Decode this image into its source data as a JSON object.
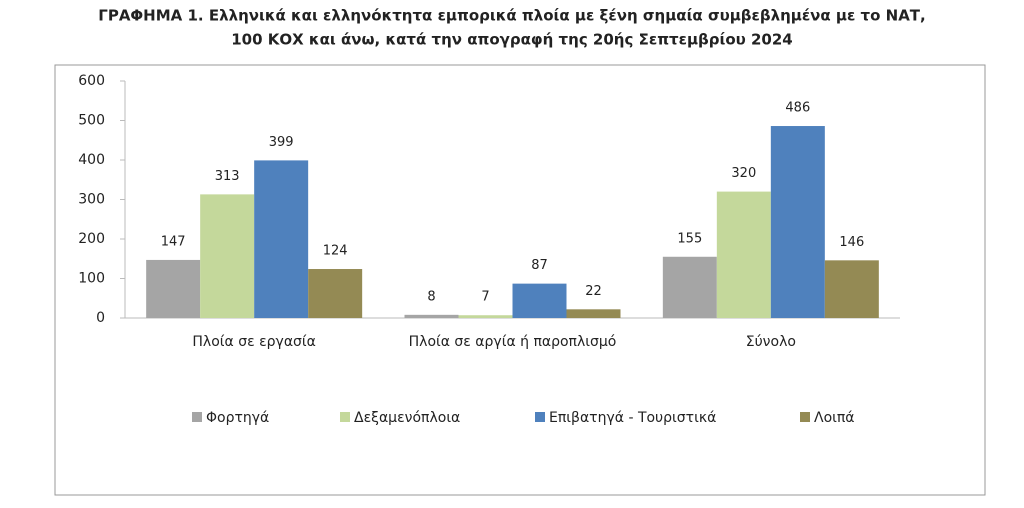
{
  "chart_data": {
    "type": "bar",
    "title": [
      "ΓΡΑΦΗΜΑ 1. Ελληνικά και ελληνόκτητα εμπορικά πλοία με ξένη σημαία συμβεβλημένα με το ΝΑΤ,",
      "100 ΚΟΧ και άνω, κατά την απογραφή της 20ής Σεπτεμβρίου 2024"
    ],
    "categories": [
      "Πλοία σε εργασία",
      "Πλοία σε αργία ή παροπλισμό",
      "Σύνολο"
    ],
    "series": [
      {
        "name": "Φορτηγά",
        "color": "#a5a5a5",
        "values": [
          147,
          8,
          155
        ]
      },
      {
        "name": "Δεξαμενόπλοια",
        "color": "#c4d89b",
        "values": [
          313,
          7,
          320
        ]
      },
      {
        "name": "Επιβατηγά - Τουριστικά",
        "color": "#4f81bd",
        "values": [
          399,
          87,
          486
        ]
      },
      {
        "name": "Λοιπά",
        "color": "#948a54",
        "values": [
          124,
          22,
          146
        ]
      }
    ],
    "ylim": [
      0,
      600
    ],
    "yticks": [
      0,
      100,
      200,
      300,
      400,
      500,
      600
    ],
    "grid": false,
    "legend": "bottom"
  }
}
